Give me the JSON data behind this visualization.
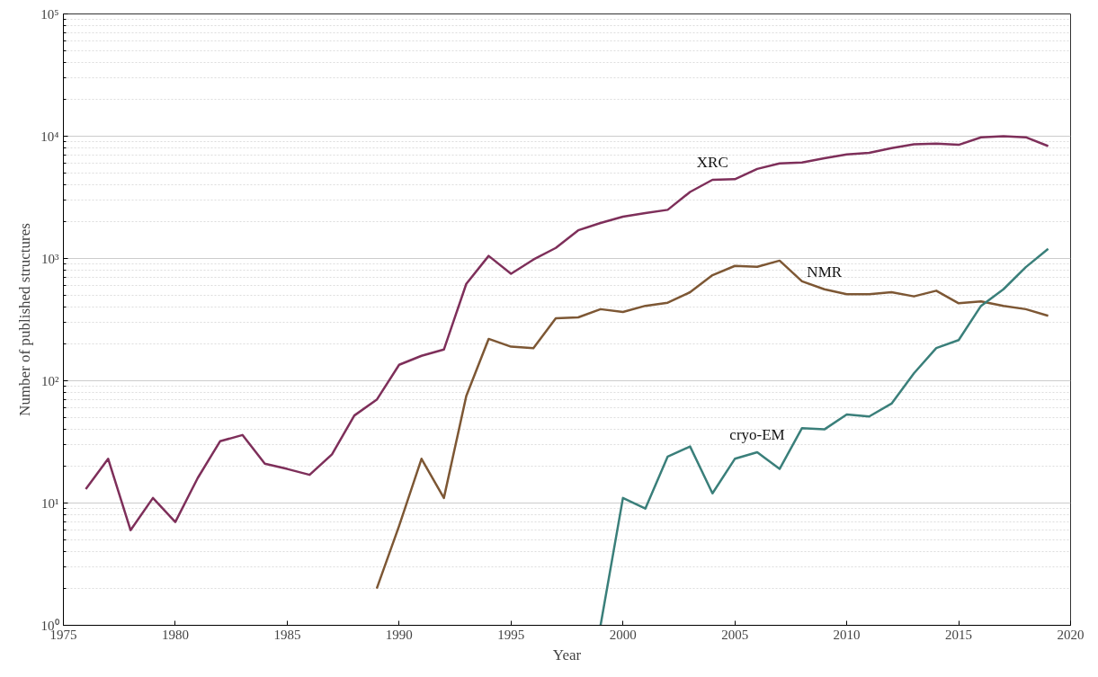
{
  "chart_data": {
    "type": "line",
    "xlabel": "Year",
    "ylabel": "Number of published structures",
    "log": "y",
    "grid": "y",
    "marker": "none",
    "line_style": "solid",
    "xlim": [
      1975,
      2020
    ],
    "xticks": [
      1975,
      1980,
      1985,
      1990,
      1995,
      2000,
      2005,
      2010,
      2015,
      2020
    ],
    "ylim": [
      1,
      100000
    ],
    "yticks": [
      {
        "value": 1,
        "label": "10⁰"
      },
      {
        "value": 10,
        "label": "10¹"
      },
      {
        "value": 100,
        "label": "10²"
      },
      {
        "value": 1000,
        "label": "10³"
      },
      {
        "value": 10000,
        "label": "10⁴"
      },
      {
        "value": 100000,
        "label": "10⁵"
      }
    ],
    "series": [
      {
        "name": "XRC",
        "color": "#7e2f5a",
        "x": [
          1976,
          1977,
          1978,
          1979,
          1980,
          1981,
          1982,
          1983,
          1984,
          1985,
          1986,
          1987,
          1988,
          1989,
          1990,
          1991,
          1992,
          1993,
          1994,
          1995,
          1996,
          1997,
          1998,
          1999,
          2000,
          2001,
          2002,
          2003,
          2004,
          2005,
          2006,
          2007,
          2008,
          2009,
          2010,
          2011,
          2012,
          2013,
          2014,
          2015,
          2016,
          2017,
          2018,
          2019
        ],
        "values": [
          13,
          23,
          6,
          11,
          7,
          16,
          32,
          36,
          21,
          19,
          17,
          25,
          52,
          70,
          135,
          160,
          180,
          620,
          1050,
          750,
          980,
          1220,
          1700,
          1950,
          2200,
          2350,
          2500,
          3500,
          4400,
          4450,
          5400,
          6000,
          6100,
          6600,
          7100,
          7300,
          8000,
          8600,
          8700,
          8500,
          9800,
          10000,
          9800,
          8300
        ]
      },
      {
        "name": "NMR",
        "color": "#7d5734",
        "x": [
          1989,
          1990,
          1991,
          1992,
          1993,
          1994,
          1995,
          1996,
          1997,
          1998,
          1999,
          2000,
          2001,
          2002,
          2003,
          2004,
          2005,
          2006,
          2007,
          2008,
          2009,
          2010,
          2011,
          2012,
          2013,
          2014,
          2015,
          2016,
          2017,
          2018,
          2019
        ],
        "values": [
          2,
          6.5,
          23,
          11,
          75,
          220,
          190,
          185,
          325,
          330,
          385,
          365,
          410,
          435,
          530,
          730,
          870,
          855,
          960,
          650,
          560,
          510,
          510,
          530,
          490,
          545,
          430,
          445,
          410,
          385,
          340
        ]
      },
      {
        "name": "cryo-EM",
        "color": "#3a7f7a",
        "x": [
          1999,
          2000,
          2001,
          2002,
          2003,
          2004,
          2005,
          2006,
          2007,
          2008,
          2009,
          2010,
          2011,
          2012,
          2013,
          2014,
          2015,
          2016,
          2017,
          2018,
          2019
        ],
        "values": [
          1,
          11,
          9,
          24,
          29,
          12,
          23,
          26,
          19,
          41,
          40,
          53,
          51,
          65,
          115,
          185,
          215,
          410,
          560,
          850,
          1200
        ]
      }
    ]
  }
}
